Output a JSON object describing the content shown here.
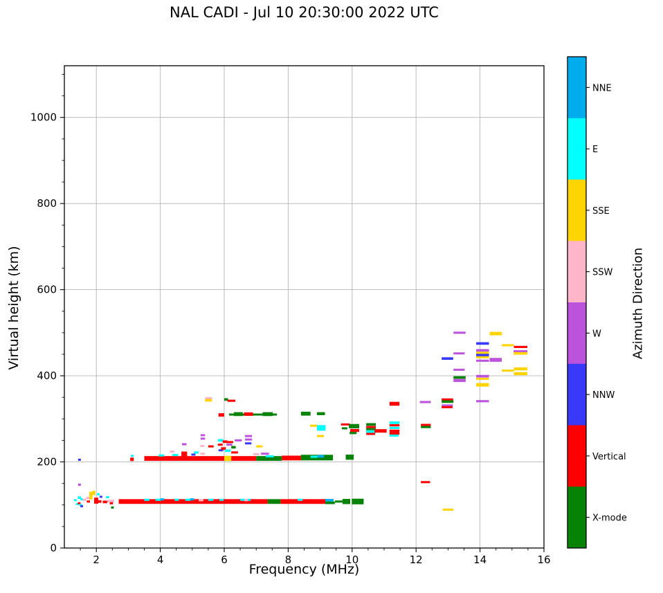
{
  "title": "NAL CADI - Jul 10 20:30:00 2022 UTC",
  "chart_data": {
    "type": "scatter",
    "title": "NAL CADI - Jul 10 20:30:00 2022 UTC",
    "xlabel": "Frequency (MHz)",
    "ylabel": "Virtual height (km)",
    "colorbar_label": "Azimuth Direction",
    "xlim": [
      1,
      16
    ],
    "ylim": [
      0,
      1120
    ],
    "x_major_ticks": [
      2,
      4,
      6,
      8,
      10,
      12,
      14,
      16
    ],
    "y_major_ticks": [
      0,
      200,
      400,
      600,
      800,
      1000
    ],
    "x_minor_step": 0.5,
    "y_minor_step": 50,
    "grid": true,
    "grid_color": "#b4b4b4",
    "legend_position": "right-colorbar",
    "categories": [
      {
        "label": "NNE",
        "color": "#00ACEC"
      },
      {
        "label": "E",
        "color": "#00FFFF"
      },
      {
        "label": "SSE",
        "color": "#FFD400"
      },
      {
        "label": "SSW",
        "color": "#FFB6C9"
      },
      {
        "label": "W",
        "color": "#BC53DC"
      },
      {
        "label": "NNW",
        "color": "#3939FA"
      },
      {
        "label": "Vertical",
        "color": "#FF0000"
      },
      {
        "label": "X-mode",
        "color": "#068206"
      }
    ],
    "points_format": "[freq_start_MHz, freq_end_MHz, virtual_height_km, azimuth_direction, thickness_km]",
    "points": [
      [
        1.3,
        1.38,
        111,
        "E",
        4
      ],
      [
        1.36,
        1.42,
        102,
        "E",
        4
      ],
      [
        1.43,
        1.5,
        205,
        "NNW",
        5
      ],
      [
        1.43,
        1.5,
        147,
        "W",
        5
      ],
      [
        1.42,
        1.52,
        117,
        "E",
        6
      ],
      [
        1.5,
        1.58,
        113,
        "E",
        4
      ],
      [
        1.42,
        1.5,
        104,
        "Vertical",
        4
      ],
      [
        1.47,
        1.55,
        100,
        "E",
        4
      ],
      [
        1.5,
        1.56,
        97,
        "NNW",
        4
      ],
      [
        1.57,
        1.68,
        112,
        "SSW",
        5
      ],
      [
        1.68,
        1.8,
        116,
        "SSW",
        6
      ],
      [
        1.7,
        1.8,
        108,
        "Vertical",
        5
      ],
      [
        1.78,
        1.88,
        122,
        "SSE",
        18
      ],
      [
        1.88,
        1.96,
        128,
        "SSE",
        10
      ],
      [
        1.93,
        2.06,
        110,
        "Vertical",
        14
      ],
      [
        2.02,
        2.1,
        125,
        "E",
        5
      ],
      [
        2.06,
        2.16,
        108,
        "Vertical",
        6
      ],
      [
        2.1,
        2.18,
        119,
        "NNW",
        4
      ],
      [
        2.2,
        2.34,
        107,
        "Vertical",
        6
      ],
      [
        2.3,
        2.4,
        118,
        "E",
        4
      ],
      [
        2.34,
        2.56,
        109,
        "SSW",
        6
      ],
      [
        2.42,
        2.52,
        104,
        "Vertical",
        5
      ],
      [
        2.46,
        2.54,
        94,
        "X-mode",
        5
      ],
      [
        2.7,
        7.36,
        108,
        "Vertical",
        11
      ],
      [
        3.5,
        3.66,
        112,
        "E",
        5
      ],
      [
        3.85,
        4.02,
        112,
        "E",
        5
      ],
      [
        4.0,
        4.12,
        113,
        "NNE",
        5
      ],
      [
        4.45,
        4.58,
        112,
        "E",
        5
      ],
      [
        4.78,
        4.95,
        112,
        "E",
        5
      ],
      [
        4.93,
        5.06,
        113,
        "NNE",
        5
      ],
      [
        5.2,
        5.35,
        111,
        "SSW",
        5
      ],
      [
        5.5,
        5.66,
        112,
        "E",
        5
      ],
      [
        5.85,
        5.98,
        112,
        "E",
        5
      ],
      [
        6.5,
        6.64,
        112,
        "E",
        5
      ],
      [
        6.63,
        6.74,
        111,
        "SSW",
        5
      ],
      [
        6.74,
        6.82,
        112,
        "E",
        5
      ],
      [
        7.36,
        7.76,
        108,
        "X-mode",
        11
      ],
      [
        7.76,
        9.16,
        108,
        "Vertical",
        11
      ],
      [
        8.3,
        8.45,
        112,
        "E",
        5
      ],
      [
        9.16,
        9.42,
        111,
        "NNE",
        6
      ],
      [
        9.16,
        9.46,
        105,
        "X-mode",
        6
      ],
      [
        9.46,
        9.7,
        108,
        "X-mode",
        5
      ],
      [
        9.7,
        9.94,
        108,
        "X-mode",
        12
      ],
      [
        9.99,
        10.36,
        108,
        "X-mode",
        13
      ],
      [
        3.06,
        3.17,
        206,
        "Vertical",
        8
      ],
      [
        3.08,
        3.16,
        214,
        "E",
        4
      ],
      [
        3.5,
        7.0,
        208,
        "Vertical",
        11
      ],
      [
        3.95,
        4.12,
        215,
        "E",
        4
      ],
      [
        4.3,
        4.45,
        224,
        "SSW",
        4
      ],
      [
        4.38,
        4.56,
        216,
        "E",
        5
      ],
      [
        4.66,
        4.84,
        218,
        "Vertical",
        12
      ],
      [
        4.68,
        4.82,
        241,
        "W",
        5
      ],
      [
        4.97,
        5.1,
        217,
        "NNW",
        4
      ],
      [
        5.05,
        5.2,
        222,
        "E",
        5
      ],
      [
        5.26,
        5.4,
        262,
        "W",
        4
      ],
      [
        5.26,
        5.4,
        254,
        "W",
        4
      ],
      [
        5.25,
        5.38,
        237,
        "SSW",
        4
      ],
      [
        5.25,
        5.4,
        219,
        "SSW",
        5
      ],
      [
        5.5,
        5.67,
        236,
        "Vertical",
        5
      ],
      [
        5.8,
        5.97,
        250,
        "E",
        6
      ],
      [
        5.8,
        5.95,
        240,
        "Vertical",
        5
      ],
      [
        5.82,
        5.97,
        227,
        "NNW",
        4
      ],
      [
        5.95,
        6.1,
        247,
        "Vertical",
        6
      ],
      [
        5.9,
        6.05,
        231,
        "Vertical",
        6
      ],
      [
        6.0,
        6.22,
        208,
        "SSE",
        12
      ],
      [
        6.02,
        6.2,
        226,
        "E",
        6
      ],
      [
        6.07,
        6.25,
        240,
        "W",
        4
      ],
      [
        6.06,
        6.28,
        246,
        "Vertical",
        4
      ],
      [
        6.22,
        6.36,
        234,
        "X-mode",
        6
      ],
      [
        6.22,
        6.43,
        222,
        "Vertical",
        5
      ],
      [
        6.33,
        6.55,
        250,
        "W",
        4
      ],
      [
        6.65,
        6.87,
        260,
        "W",
        4
      ],
      [
        6.65,
        6.87,
        252,
        "W",
        4
      ],
      [
        6.65,
        6.85,
        243,
        "NNW",
        4
      ],
      [
        6.9,
        7.1,
        218,
        "SSW",
        4
      ],
      [
        7.0,
        7.2,
        236,
        "SSE",
        5
      ],
      [
        7.0,
        7.8,
        208,
        "X-mode",
        11
      ],
      [
        7.15,
        7.4,
        219,
        "W",
        4
      ],
      [
        7.3,
        7.55,
        213,
        "E",
        5
      ],
      [
        7.8,
        8.4,
        209,
        "Vertical",
        11
      ],
      [
        8.4,
        9.4,
        210,
        "X-mode",
        13
      ],
      [
        8.7,
        8.92,
        212,
        "E",
        5
      ],
      [
        8.92,
        9.12,
        213,
        "NNE",
        6
      ],
      [
        9.8,
        10.05,
        211,
        "X-mode",
        12
      ],
      [
        5.4,
        5.62,
        348,
        "SSW",
        4
      ],
      [
        5.4,
        5.62,
        343,
        "SSE",
        6
      ],
      [
        6.0,
        6.12,
        345,
        "X-mode",
        6
      ],
      [
        6.1,
        6.35,
        342,
        "Vertical",
        5
      ],
      [
        5.82,
        6.0,
        309,
        "Vertical",
        8
      ],
      [
        6.15,
        7.65,
        310,
        "X-mode",
        4
      ],
      [
        6.3,
        6.58,
        311,
        "X-mode",
        9
      ],
      [
        6.62,
        6.9,
        311,
        "Vertical",
        8
      ],
      [
        7.2,
        7.52,
        311,
        "X-mode",
        9
      ],
      [
        8.4,
        8.7,
        312,
        "X-mode",
        9
      ],
      [
        8.9,
        9.15,
        312,
        "X-mode",
        7
      ],
      [
        8.68,
        8.9,
        284,
        "SSE",
        5
      ],
      [
        8.9,
        9.17,
        279,
        "E",
        13
      ],
      [
        8.9,
        9.12,
        260,
        "SSE",
        5
      ],
      [
        9.65,
        9.92,
        287,
        "Vertical",
        4
      ],
      [
        9.68,
        9.85,
        278,
        "X-mode",
        4
      ],
      [
        9.9,
        10.22,
        283,
        "X-mode",
        10
      ],
      [
        9.94,
        10.22,
        273,
        "Vertical",
        7
      ],
      [
        9.92,
        10.14,
        267,
        "X-mode",
        5
      ],
      [
        10.44,
        10.74,
        287,
        "X-mode",
        6
      ],
      [
        10.44,
        10.74,
        281,
        "Vertical",
        5
      ],
      [
        10.44,
        10.74,
        276,
        "X-mode",
        5
      ],
      [
        10.44,
        10.74,
        270,
        "E",
        6
      ],
      [
        10.44,
        10.72,
        265,
        "Vertical",
        4
      ],
      [
        10.7,
        11.08,
        272,
        "Vertical",
        8
      ],
      [
        11.17,
        11.48,
        335,
        "Vertical",
        9
      ],
      [
        11.17,
        11.48,
        291,
        "E",
        6
      ],
      [
        11.17,
        11.48,
        285,
        "Vertical",
        5
      ],
      [
        11.17,
        11.48,
        279,
        "E",
        5
      ],
      [
        11.17,
        11.48,
        269,
        "Vertical",
        12
      ],
      [
        11.17,
        11.45,
        261,
        "E",
        4
      ],
      [
        12.12,
        12.46,
        339,
        "W",
        5
      ],
      [
        12.15,
        12.46,
        286,
        "Vertical",
        4
      ],
      [
        12.15,
        12.46,
        281,
        "X-mode",
        5
      ],
      [
        12.15,
        12.44,
        153,
        "Vertical",
        4
      ],
      [
        12.8,
        13.16,
        345,
        "Vertical",
        5
      ],
      [
        12.8,
        13.17,
        340,
        "X-mode",
        6
      ],
      [
        12.8,
        13.15,
        331,
        "W",
        5
      ],
      [
        12.8,
        13.14,
        327,
        "Vertical",
        3
      ],
      [
        12.8,
        13.16,
        440,
        "NNW",
        6
      ],
      [
        12.83,
        13.17,
        89,
        "SSE",
        4
      ],
      [
        13.17,
        13.55,
        500,
        "W",
        5
      ],
      [
        13.17,
        13.52,
        452,
        "W",
        4
      ],
      [
        13.17,
        13.52,
        414,
        "W",
        4
      ],
      [
        13.17,
        13.55,
        396,
        "X-mode",
        6
      ],
      [
        13.17,
        13.55,
        389,
        "W",
        7
      ],
      [
        13.88,
        14.28,
        475,
        "NNW",
        6
      ],
      [
        13.88,
        14.28,
        459,
        "W",
        6
      ],
      [
        13.88,
        14.28,
        453,
        "SSE",
        6
      ],
      [
        13.88,
        14.28,
        448,
        "NNW",
        6
      ],
      [
        13.88,
        14.28,
        443,
        "SSE",
        4
      ],
      [
        13.88,
        14.28,
        435,
        "W",
        5
      ],
      [
        13.88,
        14.28,
        399,
        "W",
        6
      ],
      [
        13.88,
        14.28,
        393,
        "SSE",
        3
      ],
      [
        13.88,
        14.28,
        379,
        "SSE",
        8
      ],
      [
        13.88,
        14.28,
        341,
        "W",
        5
      ],
      [
        14.3,
        14.68,
        498,
        "SSE",
        8
      ],
      [
        14.3,
        14.68,
        437,
        "W",
        9
      ],
      [
        14.68,
        15.06,
        471,
        "SSE",
        3
      ],
      [
        14.68,
        15.06,
        412,
        "SSE",
        3
      ],
      [
        15.06,
        15.48,
        467,
        "Vertical",
        5
      ],
      [
        15.05,
        15.48,
        457,
        "W",
        4
      ],
      [
        15.05,
        15.48,
        452,
        "SSE",
        6
      ],
      [
        15.06,
        15.48,
        416,
        "SSE",
        7
      ],
      [
        15.06,
        15.48,
        405,
        "SSE",
        7
      ]
    ]
  }
}
